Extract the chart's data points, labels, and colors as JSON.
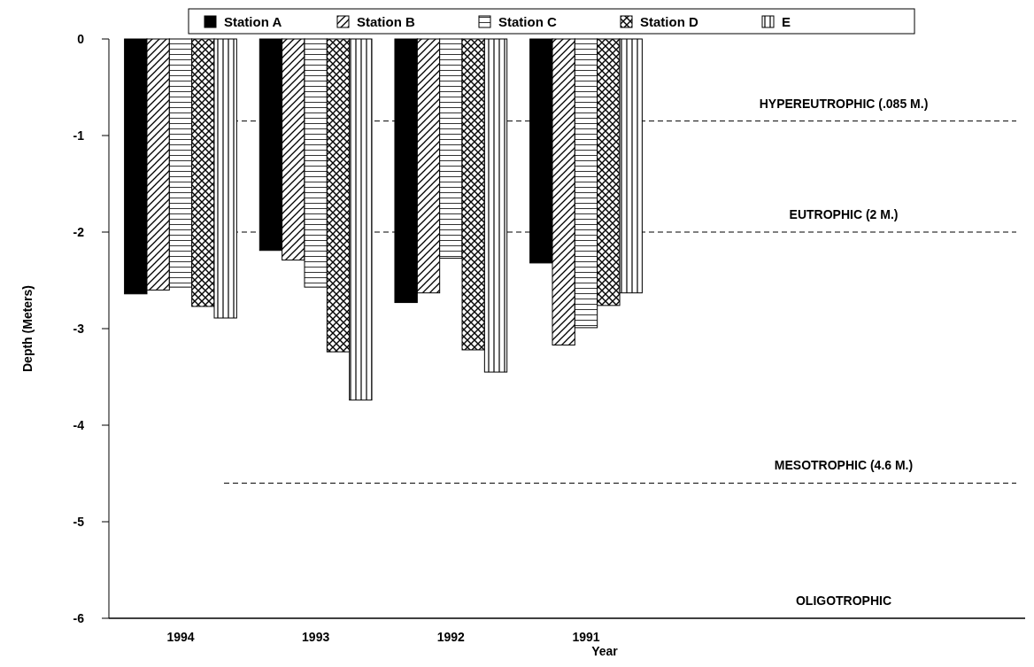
{
  "chart_data": {
    "type": "bar",
    "xlabel": "Year",
    "ylabel": "Depth (Meters)",
    "categories": [
      "1994",
      "1993",
      "1992",
      "1991"
    ],
    "series": [
      {
        "name": "Station A",
        "color": "#000000",
        "values": [
          -2.64,
          -2.19,
          -2.73,
          -2.32
        ]
      },
      {
        "name": "Station B",
        "color": "#000000",
        "values": [
          -2.6,
          -2.29,
          -2.63,
          -3.17
        ]
      },
      {
        "name": "Station C",
        "color": "#000000",
        "values": [
          -2.57,
          -2.57,
          -2.27,
          -2.99
        ]
      },
      {
        "name": "Station D",
        "color": "#000000",
        "values": [
          -2.77,
          -3.24,
          -3.22,
          -2.76
        ]
      },
      {
        "name": "E",
        "color": "#000000",
        "values": [
          -2.89,
          -3.74,
          -3.45,
          -2.63
        ]
      }
    ],
    "ylim": [
      -6,
      0
    ],
    "yticks": [
      -6,
      -5,
      -4,
      -3,
      -2,
      -1,
      0
    ],
    "ref_lines": [
      {
        "axis": "y",
        "value": -0.85,
        "label": "HYPEREUTROPHIC (.085 M.)",
        "line_style": "dashed"
      },
      {
        "axis": "y",
        "value": -2,
        "label": "EUTROPHIC (2 M.)",
        "line_style": "dashed"
      },
      {
        "axis": "y",
        "value": -4.6,
        "label": "MESOTROPHIC (4.6 M.)",
        "line_style": "dashed"
      }
    ],
    "annotations": [
      "OLIGOTROPHIC"
    ],
    "legend": "top"
  }
}
